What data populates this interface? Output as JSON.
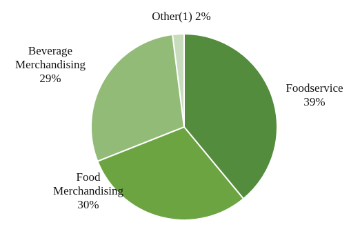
{
  "chart_data": {
    "type": "pie",
    "title": "",
    "start": "top",
    "direction": "clockwise",
    "slices": [
      {
        "label_lines": [
          "Foodservice",
          "39%"
        ],
        "label": "Foodservice",
        "value": 39,
        "color": "#548c3d"
      },
      {
        "label_lines": [
          "Food",
          "Merchandising",
          "30%"
        ],
        "label": "Food Merchandising",
        "value": 30,
        "color": "#6ca442"
      },
      {
        "label_lines": [
          "Beverage",
          "Merchandising",
          "29%"
        ],
        "label": "Beverage Merchandising",
        "value": 29,
        "color": "#92bb78"
      },
      {
        "label_lines": [
          "Other(1) 2%"
        ],
        "label": "Other(1)",
        "value": 2,
        "color": "#c7dcbd"
      }
    ]
  }
}
